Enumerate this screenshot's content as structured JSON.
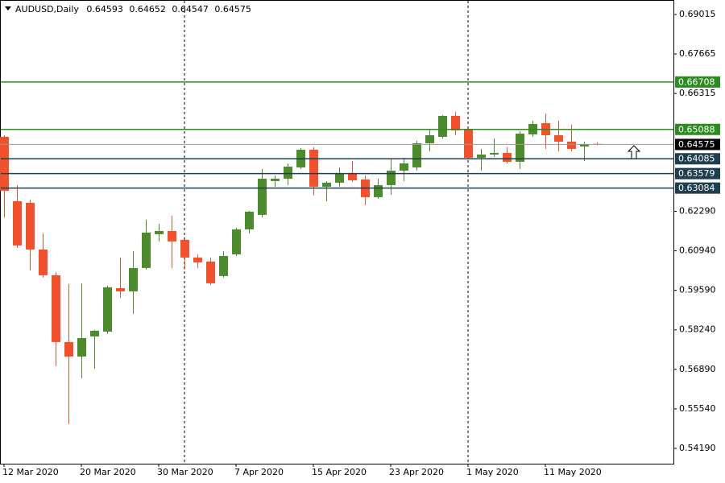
{
  "chart_data": {
    "type": "candlestick",
    "title": "AUDUSD,Daily",
    "categories": [
      "12 Mar 2020",
      null,
      null,
      null,
      null,
      null,
      "20 Mar 2020",
      null,
      null,
      null,
      null,
      null,
      "30 Mar 2020",
      null,
      null,
      null,
      null,
      null,
      "7 Apr 2020",
      null,
      null,
      null,
      null,
      null,
      "15 Apr 2020",
      null,
      null,
      null,
      null,
      null,
      "23 Apr 2020",
      null,
      null,
      null,
      null,
      null,
      "1 May 2020",
      null,
      null,
      null,
      null,
      null,
      "11 May 2020",
      null,
      null,
      null,
      null
    ],
    "open": [
      0.64835,
      0.62635,
      0.6258,
      0.60985,
      0.60105,
      0.57823,
      0.57328,
      0.58015,
      0.5818,
      0.59665,
      0.59555,
      0.60353,
      0.61508,
      0.61618,
      0.61315,
      0.6071,
      0.60573,
      0.60078,
      0.6082,
      0.61673,
      0.62168,
      0.63323,
      0.63405,
      0.6379,
      0.64395,
      0.6313,
      0.63268,
      0.63598,
      0.63378,
      0.62773,
      0.63185,
      0.6368,
      0.6379,
      0.64615,
      0.64835,
      0.6555,
      0.6511,
      0.6412,
      0.6423,
      0.64285,
      0.63983,
      0.64918,
      0.65303,
      0.6489,
      0.6467,
      0.64505,
      0.64593
    ],
    "high": [
      0.6489,
      0.63185,
      0.6269,
      0.61535,
      0.60215,
      0.59803,
      0.5983,
      0.58235,
      0.59748,
      0.6071,
      0.6093,
      0.62003,
      0.61865,
      0.6214,
      0.61398,
      0.6082,
      0.6071,
      0.6093,
      0.61728,
      0.62305,
      0.63735,
      0.63515,
      0.63928,
      0.6445,
      0.64478,
      0.63323,
      0.6379,
      0.6401,
      0.63515,
      0.63405,
      0.64093,
      0.6412,
      0.64698,
      0.6511,
      0.65578,
      0.65688,
      0.65165,
      0.64423,
      0.6478,
      0.64478,
      0.65028,
      0.65385,
      0.65633,
      0.65385,
      0.65248,
      0.6467,
      0.64652
    ],
    "low": [
      0.62085,
      0.6104,
      0.6027,
      0.60023,
      0.56998,
      0.55018,
      0.56585,
      0.56915,
      0.58098,
      0.59335,
      0.58785,
      0.60298,
      0.6126,
      0.60353,
      0.60298,
      0.60353,
      0.59775,
      0.60023,
      0.60765,
      0.61535,
      0.62085,
      0.6313,
      0.63185,
      0.63735,
      0.62828,
      0.62635,
      0.6313,
      0.63295,
      0.62498,
      0.62718,
      0.62855,
      0.63323,
      0.6368,
      0.6434,
      0.6478,
      0.6489,
      0.64065,
      0.6368,
      0.64148,
      0.63928,
      0.63735,
      0.64835,
      0.64423,
      0.6434,
      0.6434,
      0.6401,
      0.64547
    ],
    "close": [
      0.62993,
      0.61123,
      0.60985,
      0.60105,
      0.57823,
      0.57328,
      0.5796,
      0.58208,
      0.59693,
      0.59555,
      0.60353,
      0.61563,
      0.61618,
      0.6126,
      0.6071,
      0.60545,
      0.5983,
      0.60765,
      0.61673,
      0.62278,
      0.63405,
      0.63405,
      0.63818,
      0.64395,
      0.6313,
      0.63268,
      0.63598,
      0.6335,
      0.62773,
      0.63185,
      0.6368,
      0.63928,
      0.64615,
      0.6489,
      0.6555,
      0.65055,
      0.6412,
      0.6423,
      0.64285,
      0.63983,
      0.64945,
      0.65275,
      0.6489,
      0.6467,
      0.64423,
      0.64588,
      0.64575
    ],
    "up_color": "#4e8a2e",
    "down_color": "#f0522e",
    "ylim": [
      0.53667,
      0.6951
    ],
    "yticks": [
      0.69015,
      0.67665,
      0.66315,
      {
        "value": 0.6229,
        "label": "0.62290"
      },
      {
        "value": 0.6094,
        "label": "0.60940"
      },
      {
        "value": 0.5959,
        "label": "0.59590"
      },
      {
        "value": 0.5824,
        "label": "0.58240"
      },
      {
        "value": 0.5689,
        "label": "0.56890"
      },
      {
        "value": 0.5554,
        "label": "0.55540"
      },
      {
        "value": 0.5419,
        "label": "0.54190"
      }
    ],
    "levels": [
      {
        "value": 0.66708,
        "color": "#2e8b22"
      },
      {
        "value": 0.65088,
        "color": "#2e8b22"
      },
      {
        "value": 0.64085,
        "color": "#1f3f4f"
      },
      {
        "value": 0.63579,
        "color": "#1f3f4f"
      },
      {
        "value": 0.63084,
        "color": "#1f3f4f"
      }
    ],
    "price_line_color": "#999999"
  }
}
